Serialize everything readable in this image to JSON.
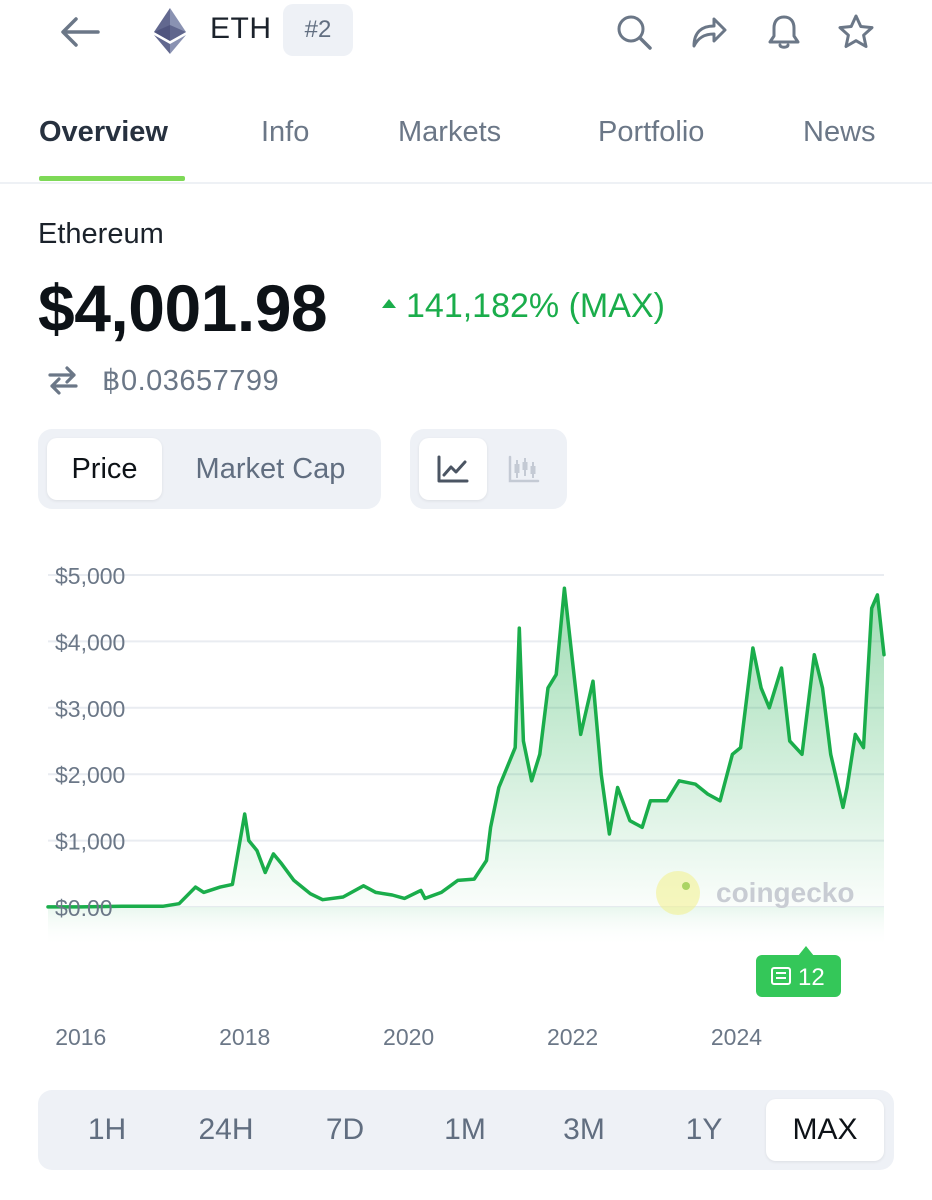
{
  "header": {
    "symbol": "ETH",
    "rank": "#2",
    "icons": [
      "back-arrow-icon",
      "ethereum-logo-icon",
      "search-icon",
      "share-icon",
      "bell-icon",
      "star-icon"
    ]
  },
  "tabs": [
    {
      "label": "Overview",
      "active": true
    },
    {
      "label": "Info",
      "active": false
    },
    {
      "label": "Markets",
      "active": false
    },
    {
      "label": "Portfolio",
      "active": false
    },
    {
      "label": "News",
      "active": false
    }
  ],
  "coin": {
    "name": "Ethereum",
    "price": "$4,001.98",
    "change": "141,182% (MAX)",
    "btc_price": "฿0.03657799"
  },
  "toggles": {
    "metric_options": [
      "Price",
      "Market Cap"
    ],
    "selected_metric": "Price",
    "chart_style_options": [
      "line-chart-icon",
      "candlestick-icon"
    ],
    "selected_style": "line-chart-icon"
  },
  "chart_data": {
    "type": "area",
    "y_ticks": [
      "$5,000",
      "$4,000",
      "$3,000",
      "$2,000",
      "$1,000",
      "$0.00"
    ],
    "x_ticks": [
      "2016",
      "2018",
      "2020",
      "2022",
      "2024"
    ],
    "ylim": [
      0,
      5000
    ],
    "xlim": [
      2015.6,
      2025.8
    ],
    "grid": true,
    "series": [
      {
        "color": "#1aad4b",
        "points": [
          [
            2015.6,
            1
          ],
          [
            2016.0,
            1
          ],
          [
            2016.5,
            12
          ],
          [
            2017.0,
            10
          ],
          [
            2017.2,
            50
          ],
          [
            2017.4,
            300
          ],
          [
            2017.5,
            220
          ],
          [
            2017.7,
            300
          ],
          [
            2017.85,
            340
          ],
          [
            2018.0,
            1400
          ],
          [
            2018.05,
            1000
          ],
          [
            2018.15,
            850
          ],
          [
            2018.25,
            520
          ],
          [
            2018.35,
            800
          ],
          [
            2018.45,
            650
          ],
          [
            2018.6,
            400
          ],
          [
            2018.8,
            200
          ],
          [
            2018.95,
            110
          ],
          [
            2019.2,
            150
          ],
          [
            2019.45,
            320
          ],
          [
            2019.6,
            220
          ],
          [
            2019.8,
            180
          ],
          [
            2019.95,
            130
          ],
          [
            2020.15,
            250
          ],
          [
            2020.2,
            130
          ],
          [
            2020.4,
            220
          ],
          [
            2020.6,
            400
          ],
          [
            2020.8,
            420
          ],
          [
            2020.95,
            700
          ],
          [
            2021.0,
            1200
          ],
          [
            2021.1,
            1800
          ],
          [
            2021.3,
            2400
          ],
          [
            2021.35,
            4200
          ],
          [
            2021.4,
            2500
          ],
          [
            2021.5,
            1900
          ],
          [
            2021.6,
            2300
          ],
          [
            2021.7,
            3300
          ],
          [
            2021.8,
            3500
          ],
          [
            2021.9,
            4800
          ],
          [
            2022.0,
            3700
          ],
          [
            2022.1,
            2600
          ],
          [
            2022.25,
            3400
          ],
          [
            2022.35,
            2000
          ],
          [
            2022.45,
            1100
          ],
          [
            2022.55,
            1800
          ],
          [
            2022.7,
            1300
          ],
          [
            2022.85,
            1200
          ],
          [
            2022.95,
            1600
          ],
          [
            2023.15,
            1600
          ],
          [
            2023.3,
            1900
          ],
          [
            2023.5,
            1850
          ],
          [
            2023.65,
            1700
          ],
          [
            2023.8,
            1600
          ],
          [
            2023.95,
            2300
          ],
          [
            2024.05,
            2400
          ],
          [
            2024.2,
            3900
          ],
          [
            2024.3,
            3300
          ],
          [
            2024.4,
            3000
          ],
          [
            2024.55,
            3600
          ],
          [
            2024.65,
            2500
          ],
          [
            2024.8,
            2300
          ],
          [
            2024.95,
            3800
          ],
          [
            2025.05,
            3300
          ],
          [
            2025.15,
            2300
          ],
          [
            2025.3,
            1500
          ],
          [
            2025.35,
            1800
          ],
          [
            2025.45,
            2600
          ],
          [
            2025.55,
            2400
          ],
          [
            2025.65,
            4500
          ],
          [
            2025.72,
            4700
          ],
          [
            2025.8,
            3800
          ]
        ]
      }
    ],
    "news_badge": "12",
    "watermark": "coingecko"
  },
  "ranges": {
    "options": [
      "1H",
      "24H",
      "7D",
      "1M",
      "3M",
      "1Y",
      "MAX"
    ],
    "selected": "MAX"
  }
}
